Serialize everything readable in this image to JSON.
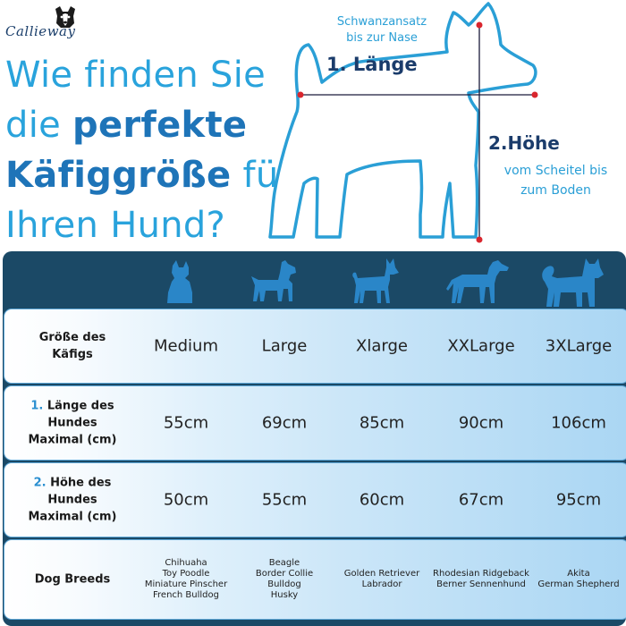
{
  "brand": {
    "name": "Callieway"
  },
  "headline": {
    "line1": "Wie finden Sie",
    "line2_plain": "die ",
    "line2_bold": "perfekte",
    "line3_bold": "Käfiggröße",
    "line3_plain": " für",
    "line4": "Ihren Hund?"
  },
  "measure": {
    "length_small_1": "Schwanzansatz",
    "length_small_2": "bis zur Nase",
    "length_title": "1. Länge",
    "height_title": "2.Höhe",
    "height_small_1": "vom Scheitel bis",
    "height_small_2": "zum Boden"
  },
  "table": {
    "size_label_1": "Größe des",
    "size_label_2": "Käfigs",
    "sizes": [
      "Medium",
      "Large",
      "Xlarge",
      "XXLarge",
      "3XLarge"
    ],
    "length_num": "1.",
    "length_label_1": " Länge des",
    "length_label_2": "Hundes",
    "length_label_3": "Maximal (cm)",
    "lengths": [
      "55cm",
      "69cm",
      "85cm",
      "90cm",
      "106cm"
    ],
    "height_num": "2.",
    "height_label_1": " Höhe des",
    "height_label_2": "Hundes",
    "height_label_3": "Maximal (cm)",
    "heights": [
      "50cm",
      "55cm",
      "60cm",
      "67cm",
      "95cm"
    ],
    "breeds_label": "Dog Breeds",
    "breeds": [
      [
        "Chihuaha",
        "Toy Poodle",
        "Miniature Pinscher",
        "French Bulldog"
      ],
      [
        "Beagle",
        "Border Collie",
        "Bulldog",
        "Husky"
      ],
      [
        "Golden Retriever",
        "Labrador"
      ],
      [
        "Rhodesian Ridgeback",
        "Berner Sennenhund"
      ],
      [
        "Akita",
        "German Shepherd"
      ]
    ]
  },
  "colors": {
    "accent_light": "#29a3dc",
    "accent_dark": "#1e74b8",
    "navy": "#1b4966",
    "dog_icon": "#2a86c8"
  },
  "icons": [
    "terrier-icon",
    "schnauzer-icon",
    "basenji-icon",
    "greyhound-icon",
    "akita-icon"
  ]
}
